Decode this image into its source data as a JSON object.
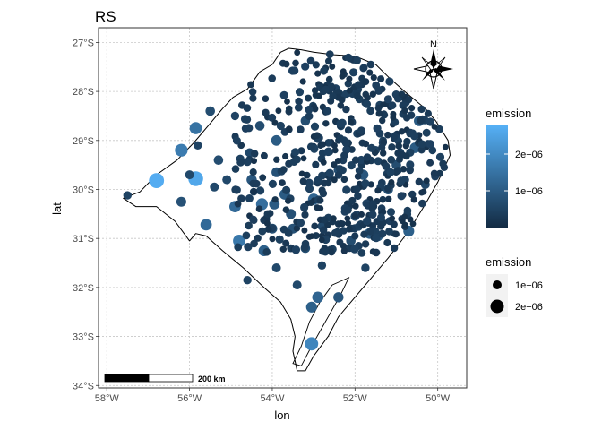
{
  "title": "RS",
  "compass_label": "N",
  "scalebar_label": "200 km",
  "colors": {
    "low": "#132B43",
    "high": "#56B1F7"
  },
  "chart_data": {
    "type": "scatter",
    "title": "RS",
    "xlabel": "lon",
    "ylabel": "lat",
    "x_ticks": [
      {
        "value": -58,
        "label": "58°W"
      },
      {
        "value": -56,
        "label": "56°W"
      },
      {
        "value": -54,
        "label": "54°W"
      },
      {
        "value": -52,
        "label": "52°W"
      },
      {
        "value": -50,
        "label": "50°W"
      }
    ],
    "y_ticks": [
      {
        "value": -27,
        "label": "27°S"
      },
      {
        "value": -28,
        "label": "28°S"
      },
      {
        "value": -29,
        "label": "29°S"
      },
      {
        "value": -30,
        "label": "30°S"
      },
      {
        "value": -31,
        "label": "31°S"
      },
      {
        "value": -32,
        "label": "32°S"
      },
      {
        "value": -33,
        "label": "33°S"
      },
      {
        "value": -34,
        "label": "34°S"
      }
    ],
    "xlim": [
      -58.2,
      -49.3
    ],
    "ylim": [
      -34.05,
      -26.7
    ],
    "grid": true,
    "legends": [
      {
        "title": "emission",
        "kind": "colorbar",
        "labels": [
          {
            "value": 2000000,
            "label": "2e+06"
          },
          {
            "value": 1000000,
            "label": "1e+06"
          }
        ],
        "range": [
          0,
          2800000
        ]
      },
      {
        "title": "emission",
        "kind": "size",
        "labels": [
          {
            "value": 1000000,
            "label": "1e+06"
          },
          {
            "value": 2000000,
            "label": "2e+06"
          }
        ]
      }
    ],
    "boundary": [
      [
        -57.6,
        -30.18
      ],
      [
        -57.2,
        -30.05
      ],
      [
        -56.8,
        -29.7
      ],
      [
        -56.3,
        -29.4
      ],
      [
        -55.9,
        -29.05
      ],
      [
        -55.5,
        -28.65
      ],
      [
        -55.2,
        -28.35
      ],
      [
        -54.95,
        -28.12
      ],
      [
        -54.6,
        -27.95
      ],
      [
        -54.3,
        -27.6
      ],
      [
        -54.0,
        -27.45
      ],
      [
        -53.8,
        -27.2
      ],
      [
        -53.6,
        -27.12
      ],
      [
        -53.3,
        -27.15
      ],
      [
        -53.0,
        -27.2
      ],
      [
        -52.5,
        -27.25
      ],
      [
        -52.0,
        -27.28
      ],
      [
        -51.5,
        -27.45
      ],
      [
        -51.2,
        -27.7
      ],
      [
        -50.8,
        -28.0
      ],
      [
        -50.3,
        -28.35
      ],
      [
        -50.05,
        -28.6
      ],
      [
        -49.75,
        -29.0
      ],
      [
        -49.7,
        -29.3
      ],
      [
        -50.0,
        -29.85
      ],
      [
        -50.3,
        -30.3
      ],
      [
        -50.7,
        -30.85
      ],
      [
        -51.2,
        -31.4
      ],
      [
        -51.9,
        -32.1
      ],
      [
        -52.4,
        -32.6
      ],
      [
        -52.65,
        -33.0
      ],
      [
        -53.0,
        -33.4
      ],
      [
        -53.2,
        -33.7
      ],
      [
        -53.4,
        -33.7
      ],
      [
        -53.5,
        -33.3
      ],
      [
        -53.45,
        -33.0
      ],
      [
        -53.55,
        -32.65
      ],
      [
        -53.8,
        -32.3
      ],
      [
        -54.2,
        -32.0
      ],
      [
        -54.7,
        -31.6
      ],
      [
        -55.2,
        -31.25
      ],
      [
        -55.6,
        -30.95
      ],
      [
        -55.85,
        -30.9
      ],
      [
        -56.0,
        -31.05
      ],
      [
        -56.35,
        -30.65
      ],
      [
        -56.8,
        -30.35
      ],
      [
        -57.3,
        -30.35
      ]
    ],
    "lagoon": [
      [
        -52.15,
        -31.8
      ],
      [
        -52.55,
        -31.95
      ],
      [
        -52.85,
        -32.3
      ],
      [
        -53.1,
        -32.7
      ],
      [
        -53.3,
        -33.2
      ],
      [
        -53.5,
        -33.55
      ],
      [
        -53.3,
        -33.6
      ],
      [
        -53.05,
        -33.2
      ],
      [
        -52.75,
        -32.75
      ],
      [
        -52.35,
        -32.15
      ]
    ],
    "series": [
      {
        "points": [
          [
            -56.8,
            -29.82,
            2700000
          ],
          [
            -55.85,
            -29.78,
            2600000
          ],
          [
            -56.2,
            -29.2,
            1700000
          ],
          [
            -55.85,
            -28.75,
            1500000
          ],
          [
            -55.5,
            -28.4,
            700000
          ],
          [
            -56.2,
            -30.25,
            800000
          ],
          [
            -55.6,
            -30.72,
            1300000
          ],
          [
            -55.3,
            -29.4,
            700000
          ],
          [
            -54.9,
            -30.35,
            1300000
          ],
          [
            -54.8,
            -31.05,
            1600000
          ],
          [
            -54.55,
            -29.25,
            600000
          ],
          [
            -54.5,
            -29.8,
            900000
          ],
          [
            -54.25,
            -30.3,
            1400000
          ],
          [
            -53.95,
            -30.3,
            1000000
          ],
          [
            -54.2,
            -31.25,
            1100000
          ],
          [
            -53.9,
            -31.6,
            600000
          ],
          [
            -53.9,
            -29.0,
            1000000
          ],
          [
            -53.7,
            -30.1,
            1000000
          ],
          [
            -53.5,
            -30.8,
            800000
          ],
          [
            -53.2,
            -31.2,
            700000
          ],
          [
            -53.0,
            -30.2,
            1200000
          ],
          [
            -52.9,
            -32.2,
            1200000
          ],
          [
            -53.05,
            -32.4,
            1100000
          ],
          [
            -52.4,
            -32.2,
            900000
          ],
          [
            -53.05,
            -33.15,
            1900000
          ],
          [
            -51.65,
            -30.9,
            1000000
          ],
          [
            -51.45,
            -30.95,
            1000000
          ],
          [
            -50.7,
            -30.85,
            1100000
          ],
          [
            -50.45,
            -28.6,
            1000000
          ],
          [
            -50.55,
            -29.15,
            1000000
          ],
          [
            -57.5,
            -30.12,
            500000
          ],
          [
            -56.0,
            -29.7,
            600000
          ],
          [
            -55.1,
            -29.8,
            600000
          ],
          [
            -54.0,
            -30.8,
            800000
          ],
          [
            -52.8,
            -30.75,
            600000
          ],
          [
            -52.0,
            -30.55,
            600000
          ],
          [
            -51.8,
            -29.7,
            900000
          ],
          [
            -51.2,
            -30.0,
            800000
          ],
          [
            -51.75,
            -31.6,
            500000
          ],
          [
            -52.1,
            -31.05,
            700000
          ],
          [
            -53.55,
            -30.5,
            800000
          ],
          [
            -54.9,
            -28.5,
            500000
          ],
          [
            -54.3,
            -28.7,
            700000
          ],
          [
            -53.2,
            -28.6,
            700000
          ],
          [
            -52.4,
            -29.6,
            700000
          ],
          [
            -51.5,
            -29.2,
            500000
          ],
          [
            -55.4,
            -29.95,
            600000
          ],
          [
            -54.6,
            -31.85,
            500000
          ],
          [
            -53.4,
            -31.95,
            600000
          ],
          [
            -52.8,
            -31.55,
            500000
          ],
          [
            -55.8,
            -29.1,
            500000
          ],
          [
            -53.9,
            -29.65,
            800000
          ],
          [
            -51.0,
            -29.5,
            700000
          ],
          [
            -50.3,
            -29.9,
            600000
          ]
        ]
      }
    ]
  }
}
